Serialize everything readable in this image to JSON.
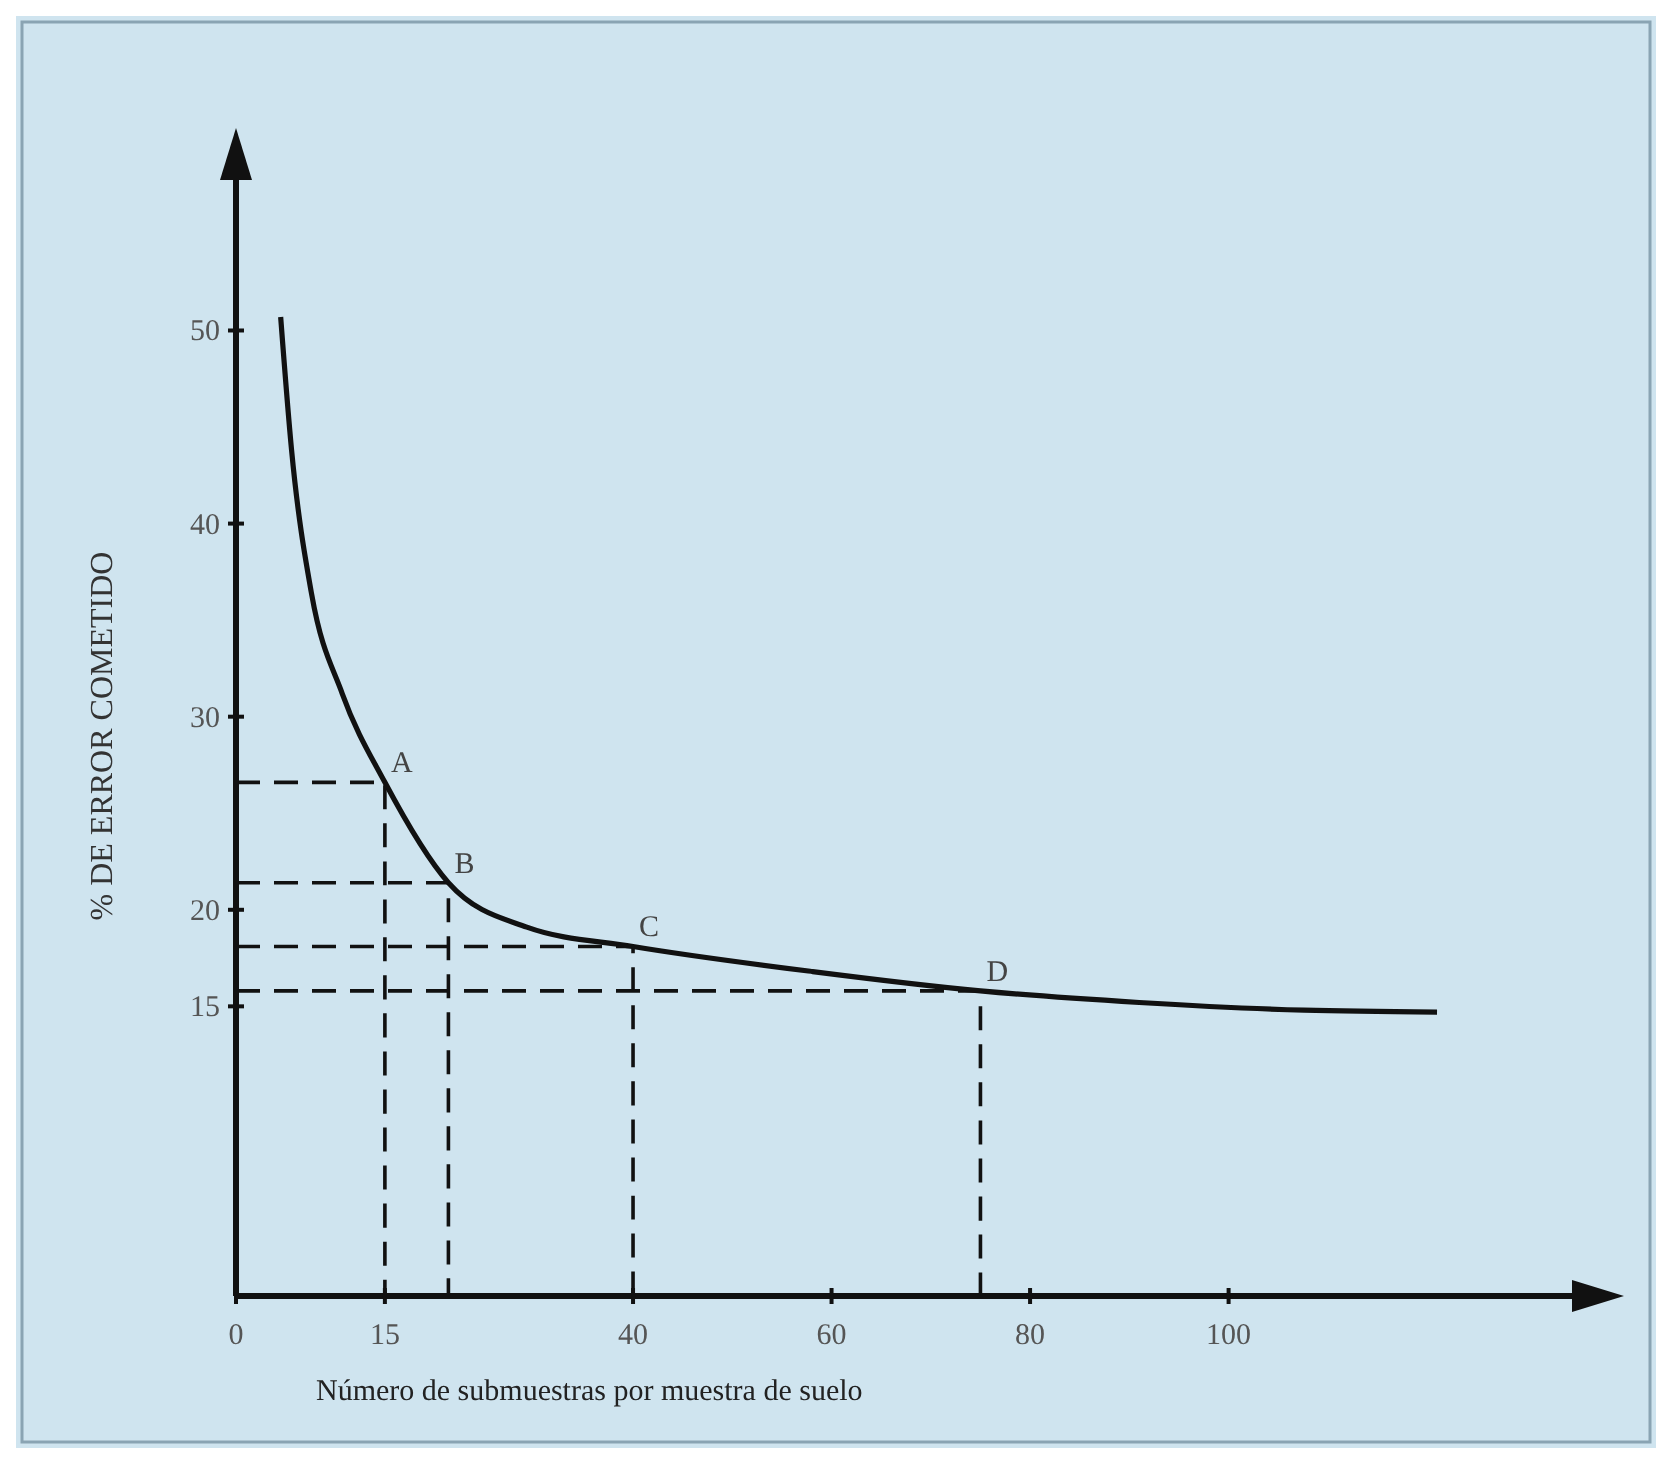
{
  "chart_data": {
    "type": "line",
    "xlabel": "Número de submuestras por muestra de suelo",
    "ylabel": "% DE ERROR COMETIDO",
    "xlim": [
      0,
      135
    ],
    "ylim": [
      0,
      58
    ],
    "xticks": [
      0,
      15,
      40,
      60,
      80,
      100
    ],
    "yticks": [
      15,
      20,
      30,
      40,
      50
    ],
    "grid": false,
    "marker": "none",
    "series": [
      {
        "color": "#111111",
        "line_style": "solid",
        "x": [
          4.5,
          5.6,
          7.6,
          10.7,
          15,
          21.4,
          29.3,
          40,
          58.1,
          75,
          91,
          107.6,
          121
        ],
        "values": [
          50.7,
          43.8,
          36.4,
          31.2,
          26.6,
          21.4,
          19.1,
          18.1,
          16.8,
          15.8,
          15.2,
          14.8,
          14.7
        ]
      },
      {
        "color": "#111111",
        "line_style": "dashed",
        "x": [
          0,
          15,
          15
        ],
        "values": [
          26.6,
          26.6,
          0
        ]
      },
      {
        "color": "#111111",
        "line_style": "dashed",
        "x": [
          0,
          21.4,
          21.4
        ],
        "values": [
          21.4,
          21.4,
          0
        ]
      },
      {
        "color": "#111111",
        "line_style": "dashed",
        "x": [
          0,
          40,
          40
        ],
        "values": [
          18.1,
          18.1,
          0
        ]
      },
      {
        "color": "#111111",
        "line_style": "dashed",
        "x": [
          0,
          75,
          75
        ],
        "values": [
          15.8,
          15.8,
          0
        ]
      }
    ],
    "annotations": [
      {
        "text": "A",
        "x": 15,
        "y": 26.6
      },
      {
        "text": "B",
        "x": 21.4,
        "y": 21.4
      },
      {
        "text": "C",
        "x": 40,
        "y": 18.1
      },
      {
        "text": "D",
        "x": 75,
        "y": 15.8
      }
    ]
  }
}
